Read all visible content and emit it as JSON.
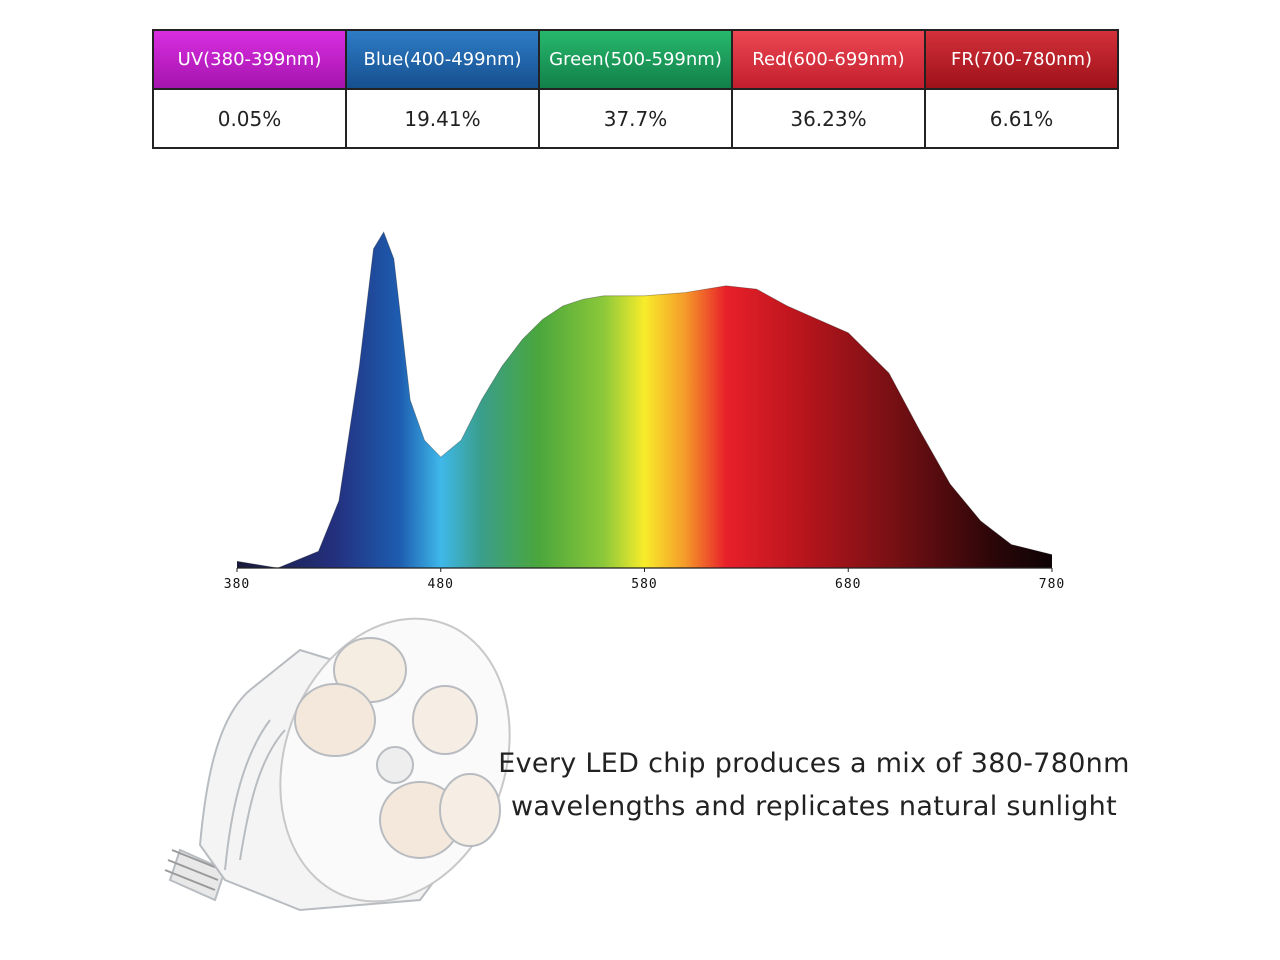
{
  "table": {
    "headers": [
      "UV(380-399nm)",
      "Blue(400-499nm)",
      "Green(500-599nm)",
      "Red(600-699nm)",
      "FR(700-780nm)"
    ],
    "values": [
      "0.05%",
      "19.41%",
      "37.7%",
      "36.23%",
      "6.61%"
    ]
  },
  "chart_data": {
    "type": "area",
    "x": [
      380,
      400,
      420,
      430,
      440,
      447,
      452,
      457,
      465,
      472,
      480,
      490,
      500,
      510,
      520,
      530,
      540,
      550,
      560,
      580,
      600,
      620,
      635,
      650,
      665,
      680,
      700,
      715,
      730,
      745,
      760,
      780
    ],
    "values": [
      0.02,
      0.0,
      0.05,
      0.2,
      0.6,
      0.95,
      1.0,
      0.92,
      0.5,
      0.38,
      0.33,
      0.38,
      0.5,
      0.6,
      0.68,
      0.74,
      0.78,
      0.8,
      0.81,
      0.81,
      0.82,
      0.84,
      0.83,
      0.78,
      0.74,
      0.7,
      0.58,
      0.41,
      0.25,
      0.14,
      0.07,
      0.04
    ],
    "xlim": [
      380,
      780
    ],
    "ylim": [
      0,
      1
    ],
    "xticks": [
      380,
      480,
      580,
      680,
      780
    ]
  },
  "caption": [
    "Every LED chip produces a mix of 380-780nm",
    "wavelengths and replicates natural sunlight"
  ]
}
